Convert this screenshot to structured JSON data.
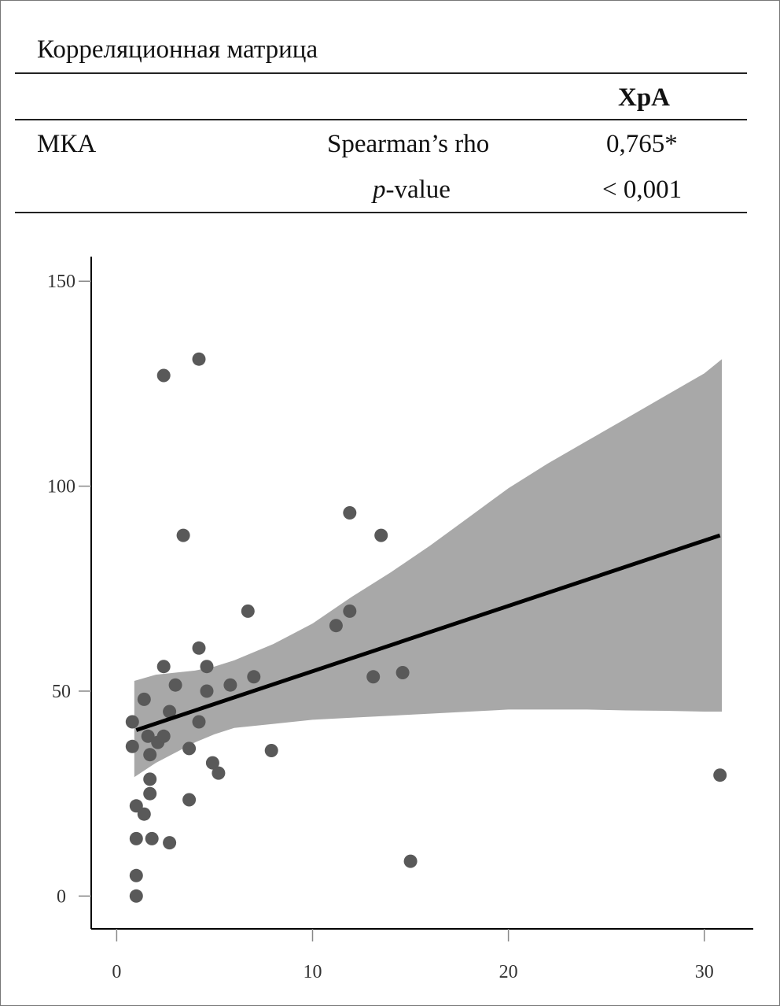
{
  "table": {
    "title": "Корреляционная матрица",
    "column_header": "ХрА",
    "row_label": "МКА",
    "stat1_label": "Spearman’s rho",
    "stat1_value": "0,765*",
    "stat2_label_italic": "p",
    "stat2_label_rest": "-value",
    "stat2_value": "< 0,001"
  },
  "chart_data": {
    "type": "scatter",
    "title": "",
    "xlabel": "",
    "ylabel": "",
    "xlim": [
      -1.3,
      32.5
    ],
    "ylim": [
      -8,
      156
    ],
    "xticks": [
      0,
      10,
      20,
      30
    ],
    "yticks": [
      0,
      50,
      100,
      150
    ],
    "x_tick_labels": [
      "0",
      "10",
      "20",
      "30"
    ],
    "y_tick_labels": [
      "0",
      "50",
      "100",
      "150"
    ],
    "grid": false,
    "points": [
      [
        0.8,
        42.5
      ],
      [
        0.8,
        36.5
      ],
      [
        1.0,
        22
      ],
      [
        1.0,
        14
      ],
      [
        1.0,
        5
      ],
      [
        1.0,
        0
      ],
      [
        1.4,
        48
      ],
      [
        1.4,
        20
      ],
      [
        1.6,
        39
      ],
      [
        1.7,
        34.5
      ],
      [
        1.7,
        28.5
      ],
      [
        1.7,
        25
      ],
      [
        1.8,
        14
      ],
      [
        2.1,
        37.5
      ],
      [
        2.4,
        127
      ],
      [
        2.4,
        56
      ],
      [
        2.4,
        39
      ],
      [
        2.7,
        45
      ],
      [
        2.7,
        13
      ],
      [
        3.0,
        51.5
      ],
      [
        3.4,
        88
      ],
      [
        3.7,
        36
      ],
      [
        3.7,
        23.5
      ],
      [
        4.2,
        131
      ],
      [
        4.2,
        60.5
      ],
      [
        4.2,
        42.5
      ],
      [
        4.6,
        56
      ],
      [
        4.6,
        50
      ],
      [
        4.9,
        32.5
      ],
      [
        5.2,
        30
      ],
      [
        5.8,
        51.5
      ],
      [
        6.7,
        69.5
      ],
      [
        7.0,
        53.5
      ],
      [
        7.9,
        35.5
      ],
      [
        11.2,
        66
      ],
      [
        11.9,
        93.5
      ],
      [
        11.9,
        69.5
      ],
      [
        13.1,
        53.5
      ],
      [
        13.5,
        88
      ],
      [
        14.6,
        54.5
      ],
      [
        15.0,
        8.5
      ],
      [
        30.8,
        29.5
      ]
    ],
    "trend_line": {
      "x": [
        1.0,
        30.8
      ],
      "y": [
        40.5,
        88
      ]
    },
    "confidence_band": {
      "x": [
        0.9,
        2,
        3,
        4,
        5,
        6,
        8,
        10,
        12,
        14,
        16,
        18,
        20,
        22,
        24,
        26,
        28,
        30,
        30.9
      ],
      "upper": [
        52.5,
        54,
        54.5,
        55,
        56,
        57.5,
        61.5,
        66.5,
        73,
        79,
        85.5,
        92.5,
        99.5,
        105.5,
        111,
        116.5,
        122,
        127.5,
        131
      ],
      "lower": [
        29,
        32.5,
        35,
        37.5,
        39.5,
        41,
        42,
        43,
        43.5,
        44,
        44.5,
        45,
        45.5,
        45.5,
        45.5,
        45.3,
        45.2,
        45,
        45
      ]
    },
    "colors": {
      "points": "#595959",
      "band": "#a8a8a8",
      "line": "#000000",
      "axis": "#000000"
    }
  }
}
